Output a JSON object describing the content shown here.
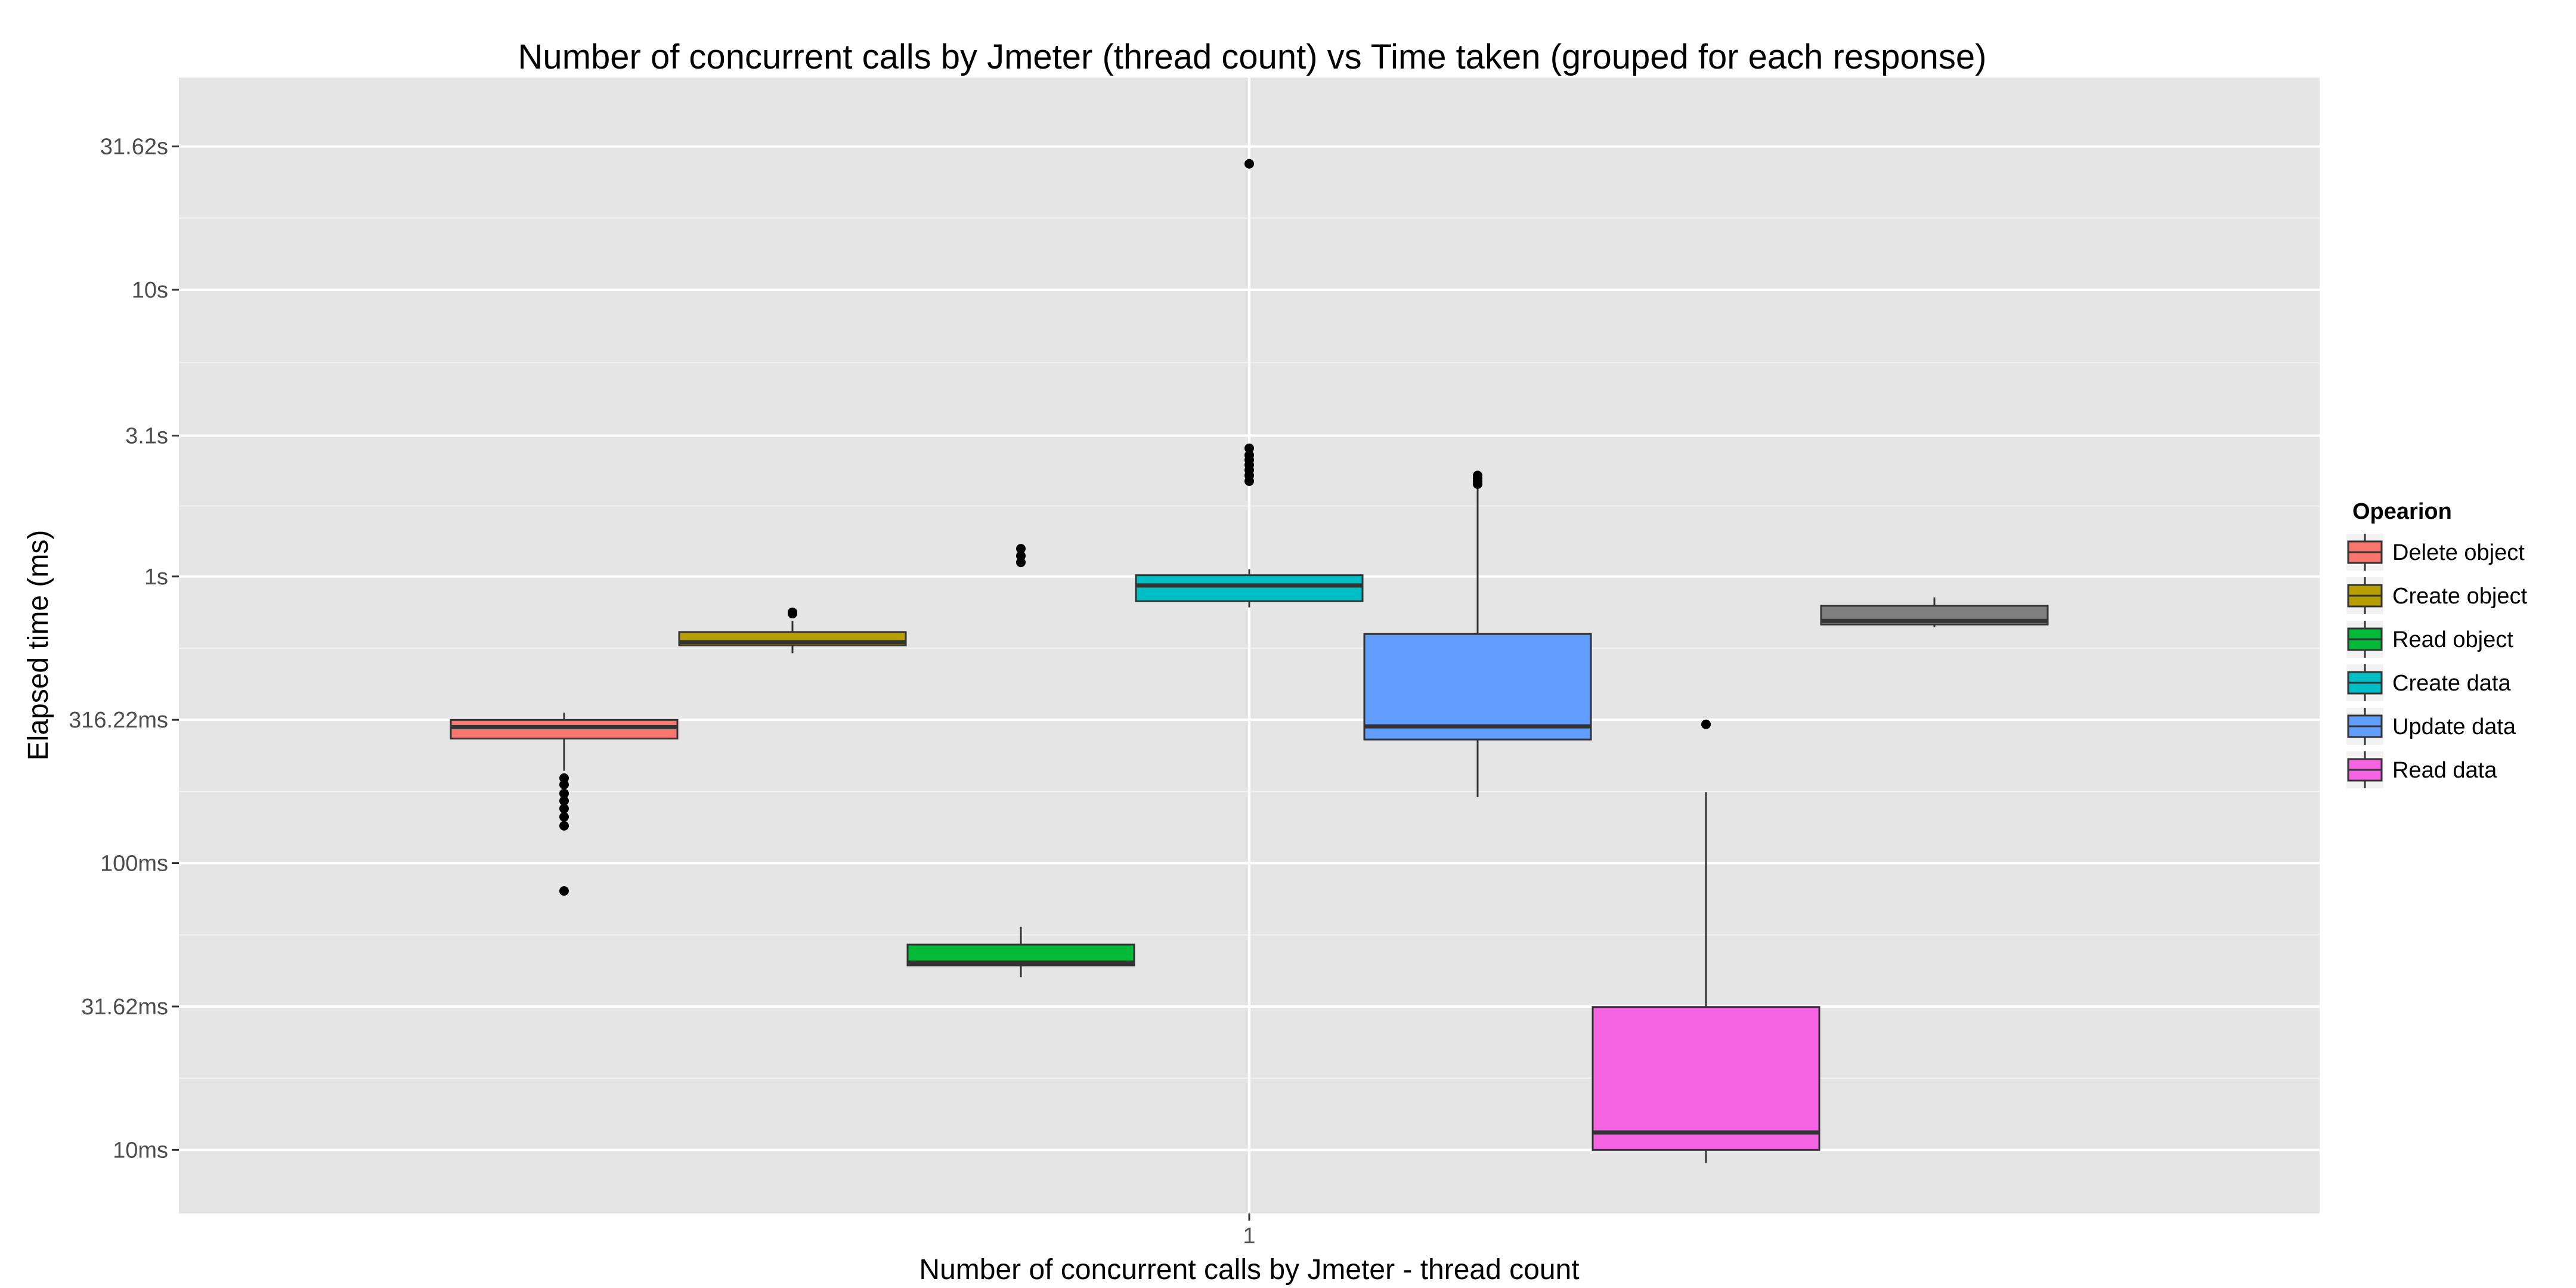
{
  "chart_data": {
    "type": "boxplot",
    "title": "Number of concurrent calls by Jmeter (thread count) vs Time taken (grouped for each response)",
    "xlabel": "Number of concurrent calls by Jmeter - thread count",
    "ylabel": "Elapsed time (ms)",
    "y_scale": "log10",
    "y_unit": "ms",
    "ylim": [
      6,
      55000
    ],
    "x_categories": [
      "1"
    ],
    "y_ticks": [
      {
        "value": 10,
        "label": "10ms"
      },
      {
        "value": 31.62,
        "label": "31.62ms"
      },
      {
        "value": 100,
        "label": "100ms"
      },
      {
        "value": 316.22,
        "label": "316.22ms"
      },
      {
        "value": 1000,
        "label": "1s"
      },
      {
        "value": 3100,
        "label": "3.1s"
      },
      {
        "value": 10000,
        "label": "10s"
      },
      {
        "value": 31620,
        "label": "31.62s"
      }
    ],
    "legend": {
      "title": "Opearion",
      "position": "right"
    },
    "grid": true,
    "series": [
      {
        "name": "Delete object",
        "color": "#F8766D",
        "whisker_low": 210,
        "q1": 272,
        "median": 298,
        "q3": 316,
        "whisker_high": 335,
        "outliers": [
          80,
          135,
          145,
          155,
          165,
          175,
          188,
          198
        ]
      },
      {
        "name": "Create object",
        "color": "#B79F00",
        "whisker_low": 540,
        "q1": 575,
        "median": 590,
        "q3": 640,
        "whisker_high": 700,
        "outliers": [
          742,
          750
        ]
      },
      {
        "name": "Read object",
        "color": "#00BA38",
        "whisker_low": 40,
        "q1": 44,
        "median": 45,
        "q3": 52,
        "whisker_high": 60,
        "outliers": [
          1120,
          1180,
          1250
        ]
      },
      {
        "name": "Create data",
        "color": "#00BFC4",
        "whisker_low": 780,
        "q1": 820,
        "median": 930,
        "q3": 1010,
        "whisker_high": 1060,
        "outliers": [
          2150,
          2250,
          2350,
          2450,
          2550,
          2650,
          2800,
          27500
        ]
      },
      {
        "name": "Update data",
        "color": "#619CFF",
        "whisker_low": 170,
        "q1": 270,
        "median": 300,
        "q3": 630,
        "whisker_high": 2080,
        "outliers": [
          2100,
          2150,
          2200,
          2250
        ]
      },
      {
        "name": "Read data",
        "color": "#F564E3",
        "whisker_low": 9,
        "q1": 10,
        "median": 11.5,
        "q3": 31.5,
        "whisker_high": 177,
        "outliers": [
          305
        ]
      },
      {
        "name": "",
        "color": "#808080",
        "whisker_low": 665,
        "q1": 680,
        "median": 700,
        "q3": 790,
        "whisker_high": 845,
        "outliers": []
      }
    ]
  }
}
